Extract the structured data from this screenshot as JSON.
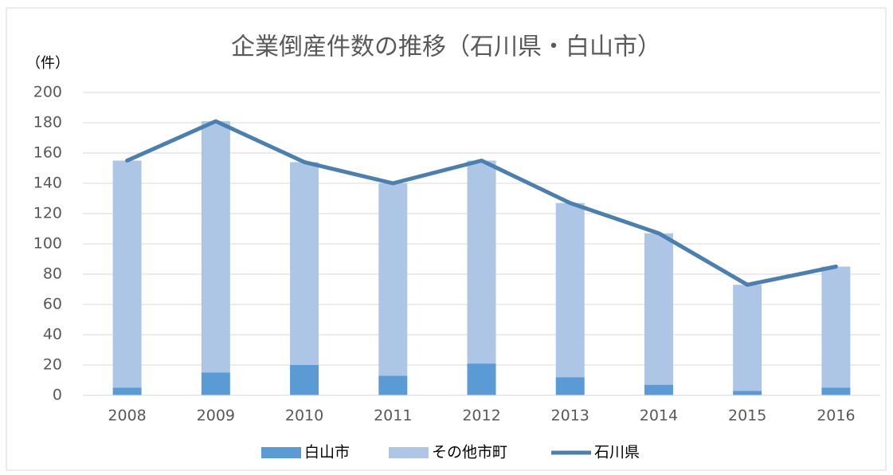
{
  "chart_data": {
    "type": "bar",
    "title": "企業倒産件数の推移（石川県・白山市）",
    "y_label": "（件）",
    "categories": [
      "2008",
      "2009",
      "2010",
      "2011",
      "2012",
      "2013",
      "2014",
      "2015",
      "2016"
    ],
    "series": [
      {
        "name": "白山市",
        "type": "bar",
        "color": "#5b9bd5",
        "values": [
          5,
          15,
          20,
          13,
          21,
          12,
          7,
          3,
          5
        ]
      },
      {
        "name": "その他市町",
        "type": "bar",
        "color": "#adc6e5",
        "values": [
          150,
          166,
          134,
          127,
          134,
          115,
          100,
          70,
          80
        ]
      },
      {
        "name": "石川県",
        "type": "line",
        "color": "#4a7fb0",
        "values": [
          155,
          181,
          154,
          140,
          155,
          127,
          107,
          73,
          85
        ]
      }
    ],
    "stacked": true,
    "ylim": [
      0,
      200
    ],
    "yticks": [
      0,
      20,
      40,
      60,
      80,
      100,
      120,
      140,
      160,
      180,
      200
    ],
    "grid": true,
    "legend": "bottom"
  }
}
